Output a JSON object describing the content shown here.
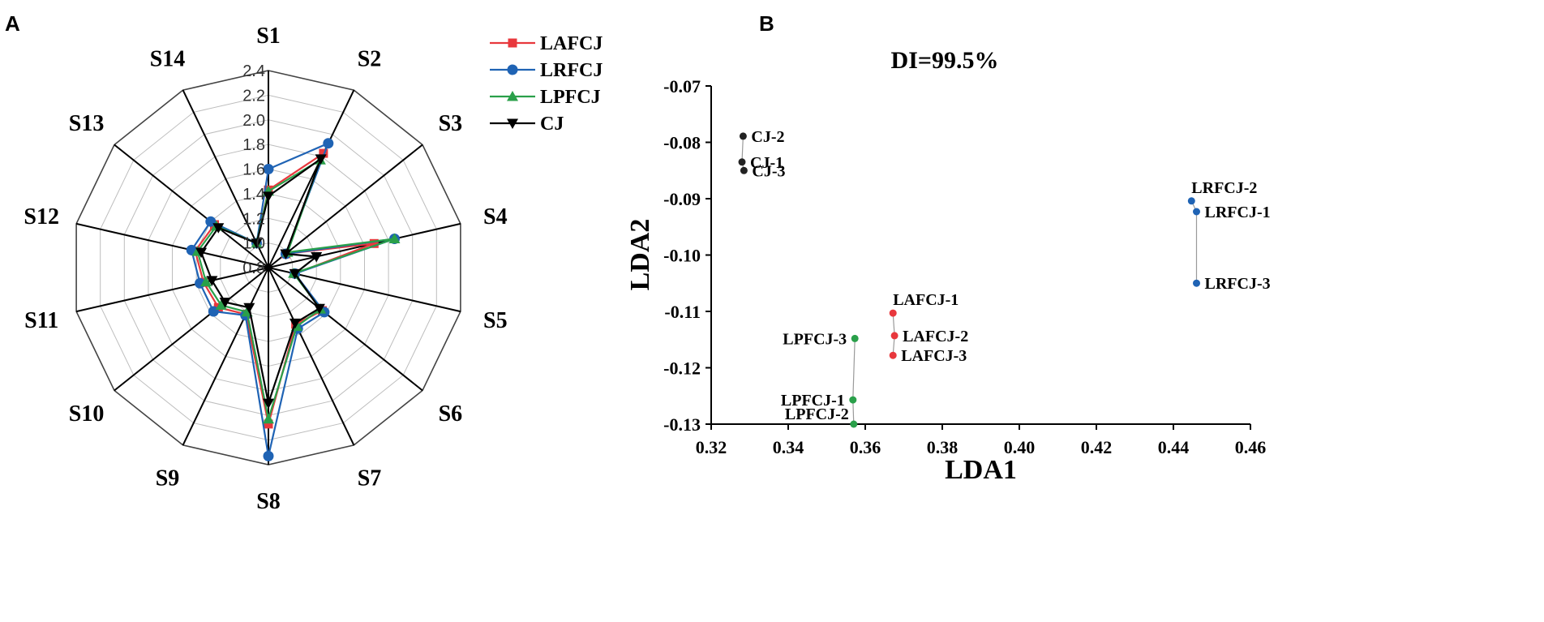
{
  "chart_data": [
    {
      "panel": "A",
      "type": "radar",
      "categories": [
        "S1",
        "S2",
        "S3",
        "S4",
        "S5",
        "S6",
        "S7",
        "S8",
        "S9",
        "S10",
        "S11",
        "S12",
        "S13",
        "S14"
      ],
      "rlim": [
        0.8,
        2.4
      ],
      "rticks": [
        "0.8",
        "1.0",
        "1.2",
        "1.4",
        "1.6",
        "1.8",
        "2.0",
        "2.2",
        "2.4"
      ],
      "rtick_values": [
        0.8,
        1.0,
        1.2,
        1.4,
        1.6,
        1.8,
        2.0,
        2.2,
        2.4
      ],
      "legend_position": "top-right",
      "series": [
        {
          "name": "LAFCJ",
          "color": "#e8383d",
          "marker": "square",
          "values": [
            1.43,
            1.83,
            0.98,
            1.68,
            1.02,
            1.36,
            1.31,
            2.07,
            1.22,
            1.32,
            1.34,
            1.41,
            1.36,
            1.02
          ]
        },
        {
          "name": "LRFCJ",
          "color": "#1f63b4",
          "marker": "circle",
          "values": [
            1.6,
            1.92,
            0.98,
            1.85,
            1.02,
            1.38,
            1.35,
            2.33,
            1.23,
            1.37,
            1.37,
            1.44,
            1.4,
            1.02
          ]
        },
        {
          "name": "LPFCJ",
          "color": "#2aa04a",
          "marker": "triangle",
          "values": [
            1.42,
            1.77,
            1.0,
            1.85,
            1.01,
            1.34,
            1.33,
            2.03,
            1.2,
            1.29,
            1.32,
            1.39,
            1.34,
            1.02
          ]
        },
        {
          "name": "CJ",
          "color": "#000000",
          "marker": "invtriangle",
          "values": [
            1.38,
            1.78,
            0.98,
            1.2,
            1.02,
            1.33,
            1.3,
            1.9,
            1.16,
            1.25,
            1.27,
            1.36,
            1.32,
            1.02
          ]
        }
      ]
    },
    {
      "panel": "B",
      "type": "scatter",
      "title": "DI=99.5%",
      "xlabel": "LDA1",
      "ylabel": "LDA2",
      "xlim": [
        0.32,
        0.46
      ],
      "ylim": [
        -0.13,
        -0.07
      ],
      "xticks": [
        "0.32",
        "0.34",
        "0.36",
        "0.38",
        "0.40",
        "0.42",
        "0.44",
        "0.46"
      ],
      "xtick_values": [
        0.32,
        0.34,
        0.36,
        0.38,
        0.4,
        0.42,
        0.44,
        0.46
      ],
      "yticks": [
        "-0.07",
        "-0.08",
        "-0.09",
        "-0.10",
        "-0.11",
        "-0.12",
        "-0.13"
      ],
      "ytick_values": [
        -0.07,
        -0.08,
        -0.09,
        -0.1,
        -0.11,
        -0.12,
        -0.13
      ],
      "groups": [
        {
          "name": "CJ",
          "color": "#222222",
          "points": [
            {
              "label": "CJ-2",
              "x": 0.3283,
              "y": -0.0789,
              "anchor": "right"
            },
            {
              "label": "CJ-1",
              "x": 0.328,
              "y": -0.0835,
              "anchor": "right"
            },
            {
              "label": "CJ-3",
              "x": 0.3285,
              "y": -0.085,
              "anchor": "right"
            }
          ]
        },
        {
          "name": "LRFCJ",
          "color": "#1f63b4",
          "points": [
            {
              "label": "LRFCJ-2",
              "x": 0.4447,
              "y": -0.0904,
              "anchor": "above-right"
            },
            {
              "label": "LRFCJ-1",
              "x": 0.446,
              "y": -0.0923,
              "anchor": "right"
            },
            {
              "label": "LRFCJ-3",
              "x": 0.446,
              "y": -0.105,
              "anchor": "right"
            }
          ]
        },
        {
          "name": "LAFCJ",
          "color": "#e8383d",
          "points": [
            {
              "label": "LAFCJ-1",
              "x": 0.3672,
              "y": -0.1103,
              "anchor": "above-right"
            },
            {
              "label": "LAFCJ-2",
              "x": 0.3676,
              "y": -0.1143,
              "anchor": "right"
            },
            {
              "label": "LAFCJ-3",
              "x": 0.3672,
              "y": -0.1178,
              "anchor": "right"
            }
          ]
        },
        {
          "name": "LPFCJ",
          "color": "#2aa04a",
          "points": [
            {
              "label": "LPFCJ-3",
              "x": 0.3573,
              "y": -0.1148,
              "anchor": "left"
            },
            {
              "label": "LPFCJ-1",
              "x": 0.3568,
              "y": -0.1257,
              "anchor": "left"
            },
            {
              "label": "LPFCJ-2",
              "x": 0.357,
              "y": -0.13,
              "anchor": "below-left"
            }
          ]
        }
      ]
    }
  ],
  "panels": {
    "a_letter": "A",
    "b_letter": "B"
  }
}
